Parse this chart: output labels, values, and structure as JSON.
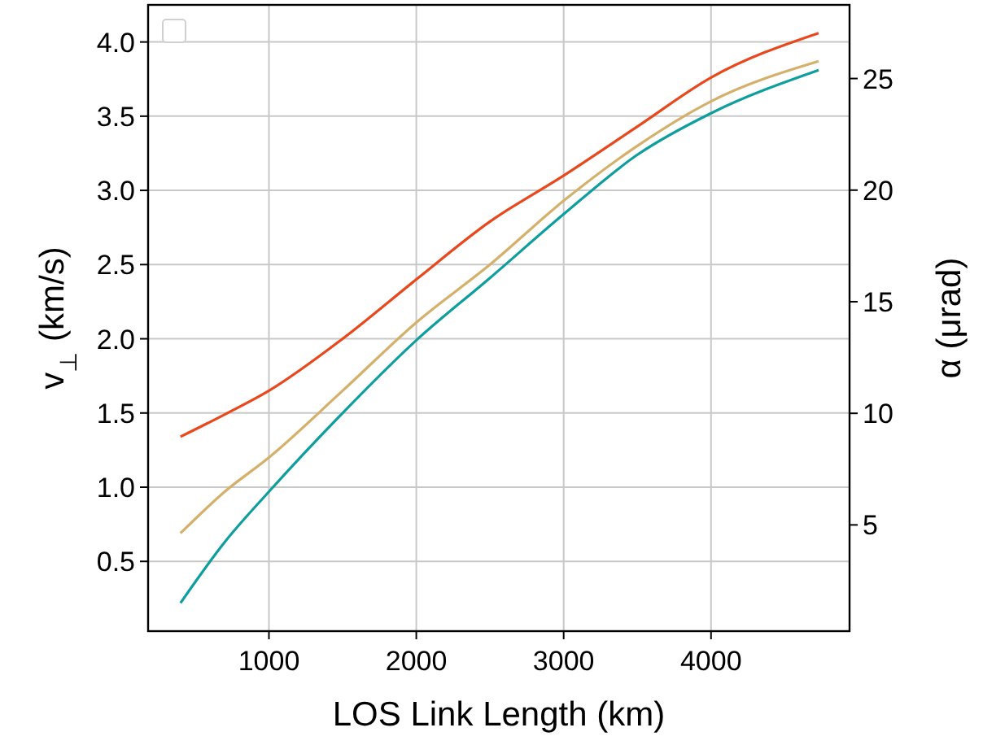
{
  "chart_data": {
    "type": "line",
    "xlabel": "LOS Link Length (km)",
    "ylabel": "v$_{⊥}$ (km/s)",
    "y2label": "α (μrad)",
    "xlim": [
      180,
      4940
    ],
    "xticks": [
      1000,
      2000,
      3000,
      4000
    ],
    "ylim": [
      0.03,
      4.25
    ],
    "yticks": [
      0.5,
      {
        "value": 1,
        "label": "1.0"
      },
      1.5,
      {
        "value": 2,
        "label": "2.0"
      },
      2.5,
      {
        "value": 3,
        "label": "3.0"
      },
      3.5,
      {
        "value": 4,
        "label": "4.0"
      }
    ],
    "y2lim": [
      0.24,
      28.3
    ],
    "y2ticks": [
      5,
      10,
      15,
      20,
      25
    ],
    "x": [
      400,
      700,
      1000,
      1500,
      2000,
      2500,
      3000,
      3500,
      4000,
      4730
    ],
    "grid": true,
    "line_style": "solid",
    "marker": "none",
    "series": [
      {
        "color": "#e8481c",
        "values": [
          1.34,
          1.49,
          1.65,
          2.0,
          2.4,
          2.79,
          3.1,
          3.43,
          3.76,
          4.06
        ]
      },
      {
        "color": "#d4b06a",
        "values": [
          0.69,
          0.97,
          1.2,
          1.65,
          2.11,
          2.5,
          2.93,
          3.3,
          3.6,
          3.87
        ]
      },
      {
        "color": "#0e9e9e",
        "values": [
          0.22,
          0.63,
          0.97,
          1.5,
          1.99,
          2.41,
          2.84,
          3.24,
          3.52,
          3.81
        ]
      }
    ]
  }
}
